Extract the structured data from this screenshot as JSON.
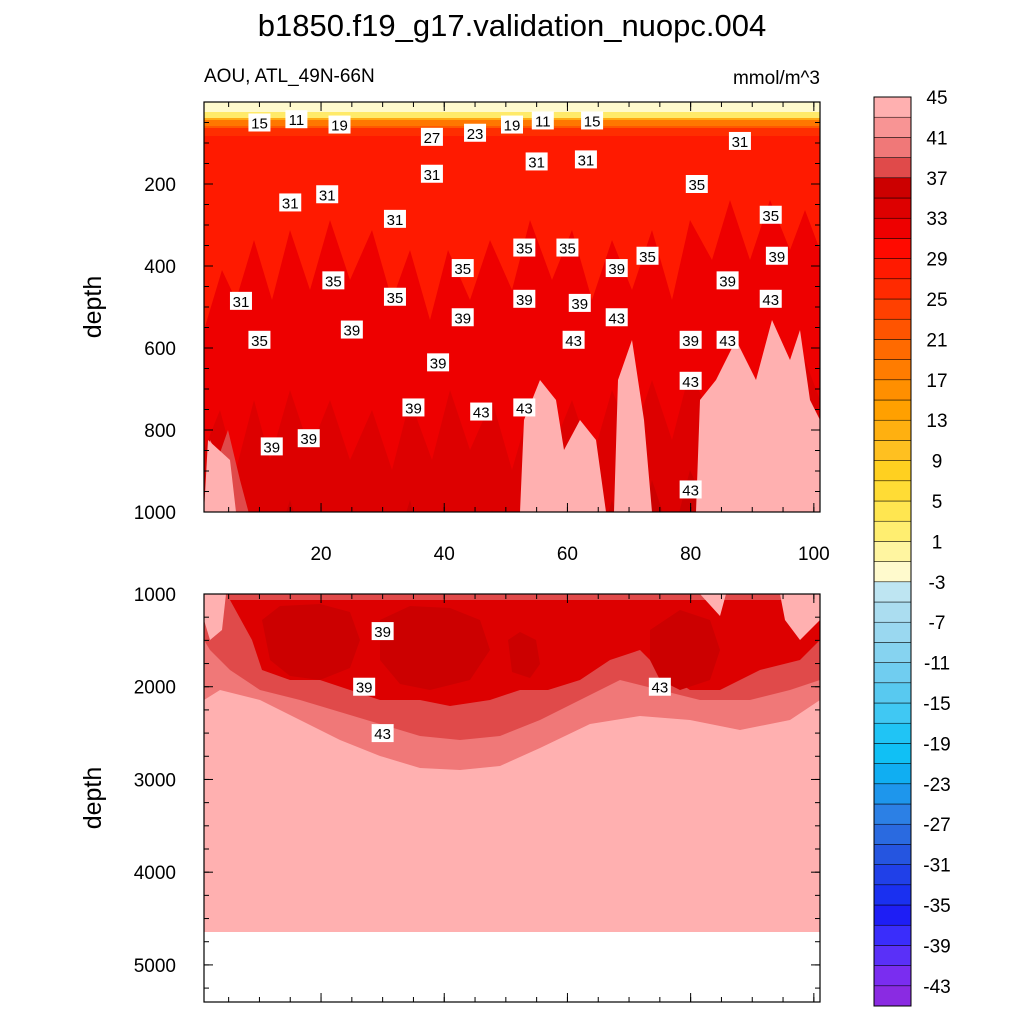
{
  "chart_data": {
    "type": "heatmap",
    "title": "b1850.f19_g17.validation_nuopc.004",
    "subtitle": "AOU, ATL_49N-66N",
    "units": "mmol/m^3",
    "x": {
      "label": "",
      "range": [
        1,
        101
      ],
      "ticks": [
        "20",
        "40",
        "60",
        "80",
        "100"
      ],
      "tick_values": [
        20,
        40,
        60,
        80,
        100
      ]
    },
    "panels": [
      {
        "name": "upper",
        "ylabel": "depth",
        "ylim": [
          0,
          1000
        ],
        "yticks": [
          "200",
          "400",
          "600",
          "800",
          "1000"
        ],
        "ytick_values": [
          200,
          400,
          600,
          800,
          1000
        ],
        "contour_labels": [
          {
            "text": "15",
            "x": 10,
            "y": 50
          },
          {
            "text": "11",
            "x": 16,
            "y": 42
          },
          {
            "text": "19",
            "x": 23,
            "y": 55
          },
          {
            "text": "27",
            "x": 38,
            "y": 85
          },
          {
            "text": "23",
            "x": 45,
            "y": 75
          },
          {
            "text": "19",
            "x": 51,
            "y": 55
          },
          {
            "text": "11",
            "x": 56,
            "y": 45
          },
          {
            "text": "15",
            "x": 64,
            "y": 45
          },
          {
            "text": "31",
            "x": 88,
            "y": 95
          },
          {
            "text": "31",
            "x": 38,
            "y": 175
          },
          {
            "text": "31",
            "x": 55,
            "y": 145
          },
          {
            "text": "31",
            "x": 63,
            "y": 140
          },
          {
            "text": "35",
            "x": 81,
            "y": 200
          },
          {
            "text": "31",
            "x": 15,
            "y": 245
          },
          {
            "text": "31",
            "x": 21,
            "y": 225
          },
          {
            "text": "31",
            "x": 32,
            "y": 285
          },
          {
            "text": "35",
            "x": 93,
            "y": 275
          },
          {
            "text": "35",
            "x": 53,
            "y": 355
          },
          {
            "text": "35",
            "x": 60,
            "y": 355
          },
          {
            "text": "35",
            "x": 73,
            "y": 375
          },
          {
            "text": "39",
            "x": 94,
            "y": 375
          },
          {
            "text": "35",
            "x": 43,
            "y": 405
          },
          {
            "text": "39",
            "x": 68,
            "y": 405
          },
          {
            "text": "35",
            "x": 22,
            "y": 435
          },
          {
            "text": "39",
            "x": 86,
            "y": 435
          },
          {
            "text": "31",
            "x": 7,
            "y": 485
          },
          {
            "text": "35",
            "x": 32,
            "y": 475
          },
          {
            "text": "39",
            "x": 53,
            "y": 480
          },
          {
            "text": "39",
            "x": 62,
            "y": 490
          },
          {
            "text": "43",
            "x": 93,
            "y": 480
          },
          {
            "text": "39",
            "x": 43,
            "y": 525
          },
          {
            "text": "43",
            "x": 68,
            "y": 525
          },
          {
            "text": "39",
            "x": 25,
            "y": 555
          },
          {
            "text": "35",
            "x": 10,
            "y": 580
          },
          {
            "text": "43",
            "x": 61,
            "y": 580
          },
          {
            "text": "39",
            "x": 80,
            "y": 580
          },
          {
            "text": "43",
            "x": 86,
            "y": 580
          },
          {
            "text": "39",
            "x": 39,
            "y": 635
          },
          {
            "text": "43",
            "x": 80,
            "y": 680
          },
          {
            "text": "39",
            "x": 35,
            "y": 745
          },
          {
            "text": "43",
            "x": 46,
            "y": 755
          },
          {
            "text": "43",
            "x": 53,
            "y": 745
          },
          {
            "text": "39",
            "x": 12,
            "y": 840
          },
          {
            "text": "39",
            "x": 18,
            "y": 820
          },
          {
            "text": "43",
            "x": 80,
            "y": 945
          }
        ]
      },
      {
        "name": "lower",
        "ylabel": "depth",
        "ylim": [
          1000,
          5400
        ],
        "yticks": [
          "1000",
          "2000",
          "3000",
          "4000",
          "5000"
        ],
        "ytick_values": [
          1000,
          2000,
          3000,
          4000,
          5000
        ],
        "contour_labels": [
          {
            "text": "39",
            "x": 30,
            "y": 1400
          },
          {
            "text": "39",
            "x": 27,
            "y": 2000
          },
          {
            "text": "43",
            "x": 30,
            "y": 2500
          },
          {
            "text": "43",
            "x": 75,
            "y": 2000
          }
        ]
      }
    ],
    "colorbar": {
      "levels": [
        -45,
        -43,
        -41,
        -39,
        -37,
        -35,
        -33,
        -31,
        -29,
        -27,
        -25,
        -23,
        -21,
        -19,
        -17,
        -15,
        -13,
        -11,
        -9,
        -7,
        -5,
        -3,
        -1,
        1,
        3,
        5,
        7,
        9,
        11,
        13,
        15,
        17,
        19,
        21,
        23,
        25,
        27,
        29,
        31,
        33,
        35,
        37,
        39,
        41,
        43,
        45
      ],
      "labels": [
        "45",
        "41",
        "37",
        "33",
        "29",
        "25",
        "21",
        "17",
        "13",
        "9",
        "5",
        "1",
        "-3",
        "-7",
        "-11",
        "-15",
        "-19",
        "-23",
        "-27",
        "-31",
        "-35",
        "-39",
        "-43"
      ],
      "colors": [
        "#8a2be2",
        "#7a2df0",
        "#5a30f8",
        "#3a2dfb",
        "#1e1ef5",
        "#1a30f0",
        "#2040e8",
        "#2555e0",
        "#2a6ae0",
        "#2c80e5",
        "#1e96ec",
        "#10aef2",
        "#10c0f5",
        "#20c4f5",
        "#40c8f3",
        "#58c9f0",
        "#70cdf0",
        "#86d3f0",
        "#9ad8f0",
        "#abddf0",
        "#bee5f2",
        "#fffacd",
        "#fff5a0",
        "#ffee70",
        "#ffe650",
        "#ffdc35",
        "#ffd020",
        "#ffc020",
        "#ffb010",
        "#ffa000",
        "#ff8f00",
        "#ff7c00",
        "#ff6a00",
        "#ff5400",
        "#ff4000",
        "#ff2a00",
        "#ff1a00",
        "#ff0a00",
        "#ee0000",
        "#dd0000",
        "#cc0000",
        "#e04a4a",
        "#f07878",
        "#f89494",
        "#ffb0b0"
      ]
    }
  }
}
